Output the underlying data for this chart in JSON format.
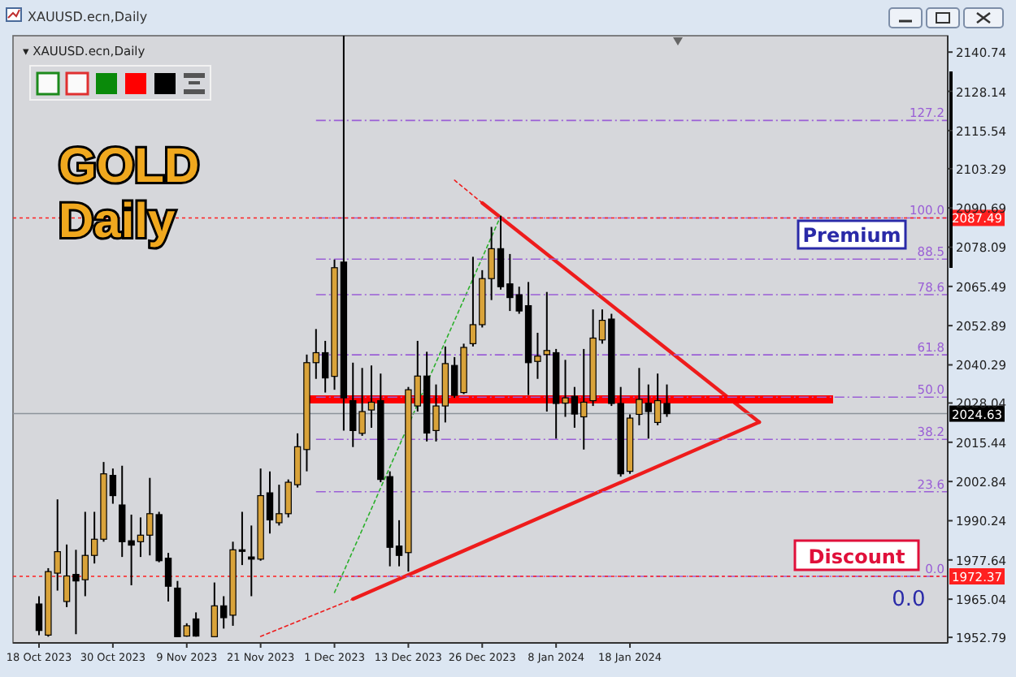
{
  "chart_data": {
    "type": "candlestick",
    "title": "XAUUSD.ecn,Daily",
    "subtitle": "▾ XAUUSD.ecn,Daily",
    "categories": [
      "18 Oct 2023",
      null,
      null,
      null,
      null,
      null,
      null,
      null,
      "30 Oct 2023",
      null,
      null,
      null,
      null,
      null,
      null,
      null,
      "9 Nov 2023",
      null,
      null,
      null,
      null,
      null,
      null,
      null,
      "21 Nov 2023",
      null,
      null,
      null,
      null,
      null,
      null,
      null,
      "1 Dec 2023",
      null,
      null,
      null,
      null,
      null,
      null,
      null,
      "13 Dec 2023",
      null,
      null,
      null,
      null,
      null,
      null,
      null,
      "26 Dec 2023",
      null,
      null,
      null,
      null,
      null,
      null,
      null,
      "8 Jan 2024",
      null,
      null,
      null,
      null,
      null,
      null,
      null,
      "18 Jan 2024",
      null,
      null,
      null,
      null,
      null,
      null,
      null,
      null,
      null,
      null,
      null,
      null,
      null,
      null,
      null,
      null,
      null,
      null,
      null,
      null,
      null,
      null,
      null,
      null,
      null,
      null,
      null,
      null,
      null,
      null,
      null,
      null,
      null
    ],
    "ohlc": [
      [
        1963.5,
        1966.0,
        1953.5,
        1955.0
      ],
      [
        1953.5,
        1975.0,
        1953.0,
        1973.9
      ],
      [
        1973.4,
        1997.1,
        1967.8,
        1980.3
      ],
      [
        1964.3,
        1982.6,
        1962.5,
        1972.5
      ],
      [
        1973.0,
        1980.9,
        1953.8,
        1970.9
      ],
      [
        1971.3,
        1993.1,
        1966.0,
        1979.1
      ],
      [
        1979.1,
        1993.1,
        1976.5,
        1984.3
      ],
      [
        1984.3,
        2009.1,
        1983.5,
        2005.3
      ],
      [
        2004.8,
        2007.0,
        1995.7,
        1998.3
      ],
      [
        1995.3,
        2007.9,
        1978.6,
        1983.5
      ],
      [
        1983.8,
        1992.2,
        1969.5,
        1982.4
      ],
      [
        1983.5,
        1991.3,
        1978.6,
        1985.6
      ],
      [
        1985.6,
        2004.0,
        1979.1,
        1992.5
      ],
      [
        1992.2,
        1993.1,
        1976.9,
        1977.4
      ],
      [
        1978.2,
        1979.9,
        1964.3,
        1969.2
      ],
      [
        1968.6,
        1970.9,
        1953.0,
        1953.0
      ],
      [
        1953.2,
        1957.3,
        1953.0,
        1956.5
      ],
      [
        1958.7,
        1960.8,
        1953.0,
        1953.2
      ],
      null,
      [
        1953.0,
        1970.4,
        1953.0,
        1962.9
      ],
      [
        1962.9,
        1966.0,
        1955.6,
        1959.1
      ],
      [
        1959.9,
        1983.5,
        1956.5,
        1980.9
      ],
      [
        1980.9,
        1993.1,
        1976.0,
        1980.4
      ],
      [
        1978.6,
        1988.7,
        1966.0,
        1977.9
      ],
      [
        1977.9,
        2007.0,
        1977.4,
        1998.3
      ],
      [
        1999.2,
        2006.1,
        1986.1,
        1990.5
      ],
      [
        1989.6,
        2001.8,
        1988.7,
        1992.5
      ],
      [
        1992.5,
        2003.5,
        1991.3,
        2002.6
      ],
      [
        2001.8,
        2018.3,
        2000.9,
        2014.0
      ],
      [
        2013.1,
        2043.6,
        2006.1,
        2041.0
      ],
      [
        2041.0,
        2051.8,
        2035.8,
        2044.2
      ],
      [
        2044.2,
        2048.0,
        2031.4,
        2036.1
      ],
      [
        2036.6,
        2074.1,
        2032.3,
        2071.5
      ],
      [
        2073.3,
        2146.0,
        2019.2,
        2029.7
      ],
      [
        2028.8,
        2041.0,
        2013.9,
        2019.2
      ],
      [
        2018.3,
        2039.3,
        2017.5,
        2025.3
      ],
      [
        2025.8,
        2040.1,
        2020.1,
        2028.3
      ],
      [
        2028.8,
        2037.5,
        2002.6,
        2003.5
      ],
      [
        2004.4,
        2006.1,
        1975.6,
        1981.7
      ],
      [
        1982.1,
        1990.4,
        1975.6,
        1979.1
      ],
      [
        1980.0,
        2033.2,
        1973.9,
        2032.3
      ],
      [
        2027.1,
        2048.0,
        2025.3,
        2036.7
      ],
      [
        2036.7,
        2044.5,
        2015.7,
        2018.4
      ],
      [
        2019.2,
        2034.0,
        2015.7,
        2027.1
      ],
      [
        2027.1,
        2046.2,
        2021.8,
        2040.7
      ],
      [
        2040.1,
        2042.8,
        2029.7,
        2030.5
      ],
      [
        2031.4,
        2047.1,
        2030.9,
        2045.9
      ],
      [
        2047.1,
        2075.0,
        2046.2,
        2053.2
      ],
      [
        2053.2,
        2070.7,
        2052.3,
        2068.0
      ],
      [
        2068.0,
        2084.6,
        2061.1,
        2077.6
      ],
      [
        2077.6,
        2088.1,
        2064.5,
        2065.4
      ],
      [
        2066.3,
        2075.9,
        2057.6,
        2061.9
      ],
      [
        2062.8,
        2065.4,
        2056.7,
        2057.6
      ],
      [
        2059.3,
        2066.9,
        2030.6,
        2041.0
      ],
      [
        2041.4,
        2050.6,
        2035.8,
        2043.1
      ],
      [
        2043.6,
        2063.7,
        2025.3,
        2044.9
      ],
      [
        2044.2,
        2045.4,
        2016.6,
        2027.9
      ],
      [
        2028.0,
        2041.9,
        2023.6,
        2029.7
      ],
      [
        2030.2,
        2033.2,
        2020.1,
        2024.5
      ],
      [
        2023.6,
        2045.4,
        2013.1,
        2028.3
      ],
      [
        2028.8,
        2058.1,
        2027.1,
        2048.9
      ],
      [
        2048.3,
        2058.1,
        2047.1,
        2054.6
      ],
      [
        2055.0,
        2056.7,
        2027.1,
        2027.9
      ],
      [
        2027.9,
        2033.2,
        2004.4,
        2005.3
      ],
      [
        2006.1,
        2024.4,
        2005.3,
        2023.2
      ],
      [
        2024.4,
        2039.3,
        2020.9,
        2029.2
      ],
      [
        2028.0,
        2034.0,
        2016.6,
        2025.3
      ],
      [
        2021.8,
        2037.5,
        2020.9,
        2028.8
      ],
      [
        2027.9,
        2034.0,
        2023.6,
        2024.63
      ],
      null,
      null,
      null,
      null,
      null,
      null,
      null,
      null,
      null,
      null,
      null,
      null,
      null,
      null,
      null,
      null,
      null,
      null,
      null,
      null,
      null,
      null,
      null,
      null,
      null,
      null,
      null,
      null,
      null
    ],
    "series": [
      {
        "type": "line",
        "color": "#ee1c1c",
        "line_style": "solid",
        "values": [
          null,
          null,
          null,
          null,
          null,
          null,
          null,
          null,
          null,
          null,
          null,
          null,
          null,
          null,
          null,
          null,
          null,
          null,
          null,
          null,
          null,
          null,
          null,
          null,
          null,
          null,
          null,
          null,
          null,
          null,
          null,
          null,
          null,
          null,
          null,
          null,
          null,
          null,
          null,
          null,
          null,
          null,
          null,
          null,
          null,
          null,
          null,
          null,
          2092.3,
          null,
          null,
          null,
          null,
          null,
          null,
          null,
          null,
          null,
          null,
          null,
          null,
          null,
          null,
          null,
          null,
          null,
          null,
          null,
          null,
          null,
          null,
          null,
          null,
          null,
          null,
          null,
          null,
          null,
          2021.9,
          null,
          null,
          null,
          null,
          null,
          null,
          null,
          null,
          null,
          null,
          null,
          null,
          null,
          null,
          null,
          null,
          null,
          null,
          null
        ]
      },
      {
        "type": "line",
        "color": "#ee1c1c",
        "line_style": "solid",
        "values": [
          null,
          null,
          null,
          null,
          null,
          null,
          null,
          null,
          null,
          null,
          null,
          null,
          null,
          null,
          null,
          null,
          null,
          null,
          null,
          null,
          null,
          null,
          null,
          null,
          null,
          null,
          null,
          null,
          null,
          null,
          null,
          null,
          null,
          null,
          1965.1,
          null,
          null,
          null,
          null,
          null,
          null,
          null,
          null,
          null,
          null,
          null,
          null,
          null,
          null,
          null,
          null,
          null,
          null,
          null,
          null,
          null,
          null,
          null,
          null,
          null,
          null,
          null,
          null,
          null,
          null,
          null,
          null,
          null,
          null,
          null,
          null,
          null,
          null,
          null,
          null,
          null,
          null,
          null,
          2021.9,
          null,
          null,
          null,
          null,
          null,
          null,
          null,
          null,
          null,
          null,
          null,
          null,
          null,
          null,
          null,
          null,
          null,
          null,
          null
        ]
      },
      {
        "type": "line",
        "color": "#ee1c1c",
        "line_style": "dotted",
        "values": [
          null,
          null,
          null,
          null,
          null,
          null,
          null,
          null,
          null,
          null,
          null,
          null,
          null,
          null,
          null,
          null,
          null,
          null,
          null,
          null,
          null,
          null,
          null,
          null,
          null,
          null,
          null,
          null,
          null,
          null,
          null,
          null,
          null,
          null,
          null,
          null,
          null,
          null,
          null,
          null,
          null,
          null,
          null,
          null,
          null,
          2099.6,
          null,
          null,
          2092.3,
          null,
          null,
          null,
          null,
          null,
          null,
          null,
          null,
          null,
          null,
          null,
          null,
          null,
          null,
          null,
          null,
          null,
          null,
          null,
          null,
          null,
          null,
          null,
          null,
          null,
          null,
          null,
          null,
          null,
          null,
          null,
          null,
          null,
          null,
          null,
          null,
          null,
          null,
          null,
          null,
          null,
          null,
          null,
          null,
          null,
          null,
          null,
          null,
          null
        ]
      },
      {
        "type": "line",
        "color": "#ee1c1c",
        "line_style": "dotted",
        "values": [
          null,
          null,
          null,
          null,
          null,
          null,
          null,
          null,
          null,
          null,
          null,
          null,
          null,
          null,
          null,
          null,
          null,
          null,
          null,
          null,
          null,
          null,
          null,
          null,
          1953.1,
          null,
          null,
          null,
          null,
          null,
          null,
          null,
          null,
          null,
          1965.1,
          null,
          null,
          null,
          null,
          null,
          null,
          null,
          null,
          null,
          null,
          null,
          null,
          null,
          null,
          null,
          null,
          null,
          null,
          null,
          null,
          null,
          null,
          null,
          null,
          null,
          null,
          null,
          null,
          null,
          null,
          null,
          null,
          null,
          null,
          null,
          null,
          null,
          null,
          null,
          null,
          null,
          null,
          null,
          null,
          null,
          null,
          null,
          null,
          null,
          null,
          null,
          null,
          null,
          null,
          null,
          null,
          null,
          null,
          null,
          null,
          null,
          null,
          null
        ]
      },
      {
        "type": "line",
        "color": "#2cb02c",
        "line_style": "dotted",
        "values": [
          null,
          null,
          null,
          null,
          null,
          null,
          null,
          null,
          null,
          null,
          null,
          null,
          null,
          null,
          null,
          null,
          null,
          null,
          null,
          null,
          null,
          null,
          null,
          null,
          null,
          null,
          null,
          null,
          null,
          null,
          null,
          null,
          1967.2,
          null,
          null,
          null,
          null,
          null,
          null,
          null,
          null,
          null,
          null,
          null,
          null,
          null,
          null,
          null,
          null,
          null,
          2088.1,
          null,
          null,
          null,
          null,
          null,
          null,
          null,
          null,
          null,
          null,
          null,
          null,
          null,
          null,
          null,
          null,
          null,
          null,
          null,
          null,
          null,
          null,
          null,
          null,
          null,
          null,
          null,
          null,
          null,
          null,
          null,
          null,
          null,
          null,
          null,
          null,
          null,
          null,
          null,
          null,
          null,
          null,
          null,
          null,
          null,
          null,
          null
        ]
      }
    ],
    "ylim": [
      1951,
      2146
    ],
    "yticks": [
      1952.79,
      1965.04,
      1977.64,
      1990.24,
      2002.84,
      2015.44,
      2028.04,
      2040.29,
      2052.89,
      2065.49,
      2078.09,
      2090.69,
      2103.29,
      2115.54,
      2128.14,
      2140.74
    ],
    "ref_lines": [
      {
        "axis": "y",
        "value": 2029.2,
        "color": "#ff0000",
        "line_style": "solid"
      },
      {
        "axis": "y",
        "value": 2118.8,
        "color": "#9a5fd6",
        "line_style": "dashed"
      },
      {
        "axis": "y",
        "value": 2087.49,
        "color": "#9a5fd6",
        "line_style": "dashed"
      },
      {
        "axis": "y",
        "value": 2074.25,
        "color": "#9a5fd6",
        "line_style": "dashed"
      },
      {
        "axis": "y",
        "value": 2062.85,
        "color": "#9a5fd6",
        "line_style": "dashed"
      },
      {
        "axis": "y",
        "value": 2043.51,
        "color": "#9a5fd6",
        "line_style": "dashed"
      },
      {
        "axis": "y",
        "value": 2029.93,
        "color": "#9a5fd6",
        "line_style": "dashed"
      },
      {
        "axis": "y",
        "value": 2016.35,
        "color": "#9a5fd6",
        "line_style": "dashed"
      },
      {
        "axis": "y",
        "value": 1999.54,
        "color": "#9a5fd6",
        "line_style": "dashed"
      },
      {
        "axis": "y",
        "value": 1972.37,
        "color": "#9a5fd6",
        "line_style": "dashed"
      },
      {
        "axis": "y",
        "value": 2087.49,
        "label": "2087.49",
        "color": "#ff2020",
        "line_style": "dotted"
      },
      {
        "axis": "y",
        "value": 1972.37,
        "label": "1972.37",
        "color": "#ff2020",
        "line_style": "dotted"
      },
      {
        "axis": "y",
        "value": 2024.63,
        "label": "2024.63",
        "color": "#8d939b",
        "line_style": "solid"
      }
    ],
    "annotations": [
      "GOLD Daily",
      "Premium",
      "Discount",
      "0.0",
      {
        "text": "127.2",
        "y": 2118.8
      },
      {
        "text": "100.0",
        "y": 2087.49
      },
      {
        "text": "88.5",
        "y": 2074.25
      },
      {
        "text": "78.6",
        "y": 2062.85
      },
      {
        "text": "61.8",
        "y": 2043.51
      },
      {
        "text": "50.0",
        "y": 2029.93
      },
      {
        "text": "38.2",
        "y": 2016.35
      },
      {
        "text": "23.6",
        "y": 1999.54
      },
      {
        "text": "0.0",
        "y": 1972.37
      }
    ]
  }
}
